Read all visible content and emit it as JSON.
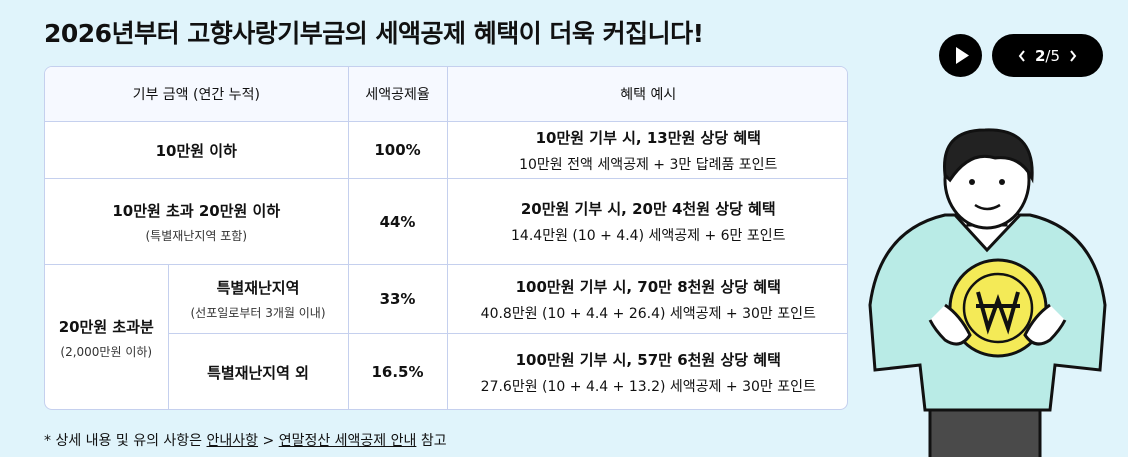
{
  "title": "2026년부터 고향사랑기부금의 세액공제 혜택이 더욱 커집니다!",
  "pager": {
    "current": "2",
    "total": "/5"
  },
  "table": {
    "headers": [
      "기부 금액 (연간 누적)",
      "세액공제율",
      "혜택 예시"
    ],
    "rows": [
      {
        "amount": "10만원 이하",
        "rate": "100%",
        "benefit": "10만원 기부 시, 13만원 상당 혜택",
        "detail": "10만원 전액 세액공제 + 3만 답례품 포인트"
      },
      {
        "amount": "10만원 초과 20만원 이하",
        "note": "(특별재난지역 포함)",
        "rate": "44%",
        "benefit": "20만원 기부 시, 20만 4천원 상당 혜택",
        "detail": "14.4만원 (10 + 4.4) 세액공제 + 6만 포인트"
      },
      {
        "amount": "20만원 초과분",
        "note": "(2,000만원 이하)",
        "sub_rows": [
          {
            "region": "특별재난지역",
            "note": "(선포일로부터 3개월 이내)",
            "rate": "33%",
            "benefit": "100만원 기부 시, 70만 8천원 상당 혜택",
            "detail": "40.8만원 (10 + 4.4 + 26.4) 세액공제 + 30만 포인트"
          },
          {
            "region": "특별재난지역 외",
            "rate": "16.5%",
            "benefit": "100만원 기부 시, 57만 6천원 상당 혜택",
            "detail": "27.6만원 (10 + 4.4 + 13.2) 세액공제 + 30만 포인트"
          }
        ]
      }
    ]
  },
  "footnote": {
    "prefix": "* 상세 내용 및 유의 사항은",
    "link1": "안내사항",
    "separator": ">",
    "link2": "연말정산 세액공제 안내",
    "suffix": "참고"
  }
}
